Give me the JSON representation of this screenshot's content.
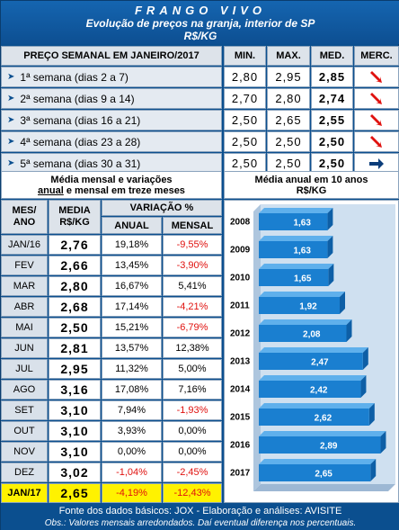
{
  "header": {
    "title": "FRANGO VIVO",
    "subtitle": "Evolução de preços na granja, interior de SP",
    "unit": "R$/KG"
  },
  "weekly": {
    "label": "PREÇO SEMANAL EM JANEIRO/2017",
    "col_min": "MIN.",
    "col_max": "MAX.",
    "col_med": "MED.",
    "col_merc": "MERC.",
    "rows": [
      {
        "label": "1ª semana (dias 2 a 7)",
        "min": "2,80",
        "max": "2,95",
        "med": "2,85",
        "trend": "down"
      },
      {
        "label": "2ª semana (dias 9 a 14)",
        "min": "2,70",
        "max": "2,80",
        "med": "2,74",
        "trend": "down"
      },
      {
        "label": "3ª semana (dias 16 a 21)",
        "min": "2,50",
        "max": "2,65",
        "med": "2,55",
        "trend": "down"
      },
      {
        "label": "4ª semana (dias 23 a 28)",
        "min": "2,50",
        "max": "2,50",
        "med": "2,50",
        "trend": "down"
      },
      {
        "label": "5ª semana (dias 30 a 31)",
        "min": "2,50",
        "max": "2,50",
        "med": "2,50",
        "trend": "flat"
      }
    ]
  },
  "monthly": {
    "heading_part1": "Média mensal e variações",
    "heading_underlined": "anual",
    "heading_part2": "e mensal em treze meses",
    "col_month": "MES/ ANO",
    "col_media": "MEDIA R$/KG",
    "col_variacao": "VARIAÇÃO %",
    "col_anual": "ANUAL",
    "col_mensal": "MENSAL",
    "rows": [
      {
        "month": "JAN/16",
        "media": "2,76",
        "anual": "19,18%",
        "mensal": "-9,55%"
      },
      {
        "month": "FEV",
        "media": "2,66",
        "anual": "13,45%",
        "mensal": "-3,90%"
      },
      {
        "month": "MAR",
        "media": "2,80",
        "anual": "16,67%",
        "mensal": "5,41%"
      },
      {
        "month": "ABR",
        "media": "2,68",
        "anual": "17,14%",
        "mensal": "-4,21%"
      },
      {
        "month": "MAI",
        "media": "2,50",
        "anual": "15,21%",
        "mensal": "-6,79%"
      },
      {
        "month": "JUN",
        "media": "2,81",
        "anual": "13,57%",
        "mensal": "12,38%"
      },
      {
        "month": "JUL",
        "media": "2,95",
        "anual": "11,32%",
        "mensal": "5,00%"
      },
      {
        "month": "AGO",
        "media": "3,16",
        "anual": "17,08%",
        "mensal": "7,16%"
      },
      {
        "month": "SET",
        "media": "3,10",
        "anual": "7,94%",
        "mensal": "-1,93%"
      },
      {
        "month": "OUT",
        "media": "3,10",
        "anual": "3,93%",
        "mensal": "0,00%"
      },
      {
        "month": "NOV",
        "media": "3,10",
        "anual": "0,00%",
        "mensal": "0,00%"
      },
      {
        "month": "DEZ",
        "media": "3,02",
        "anual": "-1,04%",
        "mensal": "-2,45%"
      },
      {
        "month": "JAN/17",
        "media": "2,65",
        "anual": "-4,19%",
        "mensal": "-12,43%"
      }
    ]
  },
  "annual": {
    "heading": "Média anual em 10 anos",
    "unit": "R$/KG"
  },
  "chart_data": {
    "type": "bar",
    "orientation": "horizontal",
    "title": "Média anual em 10 anos",
    "subtitle": "R$/KG",
    "categories": [
      "2008",
      "2009",
      "2010",
      "2011",
      "2012",
      "2013",
      "2014",
      "2015",
      "2016",
      "2017"
    ],
    "values": [
      1.63,
      1.63,
      1.65,
      1.92,
      2.08,
      2.47,
      2.42,
      2.62,
      2.89,
      2.65
    ],
    "value_labels": [
      "1,63",
      "1,63",
      "1,65",
      "1,92",
      "2,08",
      "2,47",
      "2,42",
      "2,62",
      "2,89",
      "2,65"
    ],
    "xlim": [
      0,
      3.2
    ],
    "grid": false,
    "legend": "none",
    "bar_color": "#1a7fd0"
  },
  "colors": {
    "background": "#0b4f8f",
    "negative": "#e0120f",
    "highlight": "#fff200",
    "down_arrow": "#e0120f",
    "flat_arrow": "#0b3d7a"
  },
  "footer": {
    "line1": "Fonte dos dados básicos: JOX - Elaboração e análises: AVISITE",
    "line2": "Obs.: Valores mensais arredondados. Daí eventual diferença nos percentuais."
  }
}
